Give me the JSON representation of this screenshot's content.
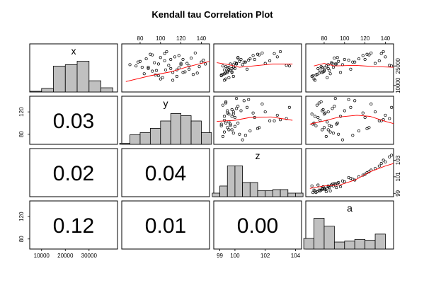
{
  "chart_data": {
    "type": "scatter",
    "title": "Kendall tau Correlation Plot",
    "variables": [
      "x",
      "y",
      "z",
      "a"
    ],
    "lower_panels": [
      {
        "row": "y",
        "col": "x",
        "label": "0.03"
      },
      {
        "row": "z",
        "col": "x",
        "label": "0.02"
      },
      {
        "row": "z",
        "col": "y",
        "label": "0.04"
      },
      {
        "row": "a",
        "col": "x",
        "label": "0.12"
      },
      {
        "row": "a",
        "col": "y",
        "label": "0.01"
      },
      {
        "row": "a",
        "col": "z",
        "label": "0.00"
      }
    ],
    "axes": {
      "x": {
        "range": [
          5000,
          42000
        ],
        "ticks": [
          "10000",
          "20000",
          "30000"
        ],
        "tick_values": [
          10000,
          20000,
          30000
        ],
        "side": "bottom"
      },
      "y": {
        "range": [
          62,
          148
        ],
        "ticks": [
          "80",
          "100",
          "120",
          "140"
        ],
        "tick_values": [
          80,
          100,
          120,
          140
        ],
        "side": "top",
        "left_ticks": [
          "80",
          "120"
        ],
        "left_tick_values": [
          80,
          120
        ]
      },
      "z": {
        "range": [
          98.6,
          104.4
        ],
        "ticks": [
          "99",
          "100",
          "102",
          "104"
        ],
        "tick_values": [
          99,
          100,
          102,
          104
        ],
        "side": "bottom",
        "right_ticks": [
          "99",
          "101",
          "103"
        ],
        "right_tick_values": [
          99,
          101,
          103
        ]
      },
      "a": {
        "range": [
          62,
          148
        ],
        "ticks": [
          "80",
          "100",
          "120",
          "140"
        ],
        "tick_values": [
          80,
          100,
          120,
          140
        ],
        "side": "top",
        "left_ticks": [
          "80",
          "120"
        ],
        "left_tick_values": [
          80,
          120
        ]
      },
      "x_right": {
        "range": [
          5000,
          42000
        ],
        "ticks": [
          "10000",
          "25000"
        ],
        "tick_values": [
          10000,
          25000
        ]
      }
    },
    "histograms": {
      "x": {
        "breaks": [
          5000,
          10000,
          15000,
          20000,
          25000,
          30000,
          35000,
          40000
        ],
        "counts": [
          1,
          5,
          37,
          39,
          44,
          16,
          6
        ]
      },
      "y": {
        "breaks": [
          60,
          70,
          80,
          90,
          100,
          110,
          120,
          130,
          140,
          150
        ],
        "counts": [
          1,
          9,
          11,
          15,
          22,
          29,
          27,
          22,
          11
        ]
      },
      "z": {
        "breaks": [
          98.5,
          99,
          99.5,
          100,
          100.5,
          101,
          101.5,
          102,
          102.5,
          103,
          103.5,
          104,
          104.5
        ],
        "counts": [
          3,
          9,
          26,
          26,
          12,
          12,
          5,
          5,
          6,
          6,
          3,
          3
        ]
      },
      "a": {
        "breaks": [
          60,
          70,
          80,
          90,
          100,
          110,
          120,
          130,
          140,
          150
        ],
        "counts": [
          12,
          35,
          26,
          8,
          9,
          11,
          10,
          17,
          0
        ]
      }
    },
    "upper_panels": [
      {
        "x": "y",
        "y": "x",
        "smooth": [
          [
            66,
            13000
          ],
          [
            90,
            17500
          ],
          [
            110,
            20500
          ],
          [
            125,
            24000
          ],
          [
            140,
            27000
          ],
          [
            148,
            28500
          ]
        ]
      },
      {
        "x": "z",
        "y": "x",
        "smooth": [
          [
            98.8,
            27500
          ],
          [
            99.6,
            26000
          ],
          [
            100.3,
            24000
          ],
          [
            101.2,
            25000
          ],
          [
            102.5,
            26500
          ],
          [
            103.8,
            26500
          ]
        ]
      },
      {
        "x": "a",
        "y": "x",
        "smooth": [
          [
            70,
            25000
          ],
          [
            80,
            27000
          ],
          [
            90,
            25000
          ],
          [
            110,
            25500
          ],
          [
            130,
            24500
          ],
          [
            148,
            24000
          ]
        ]
      },
      {
        "x": "z",
        "y": "y",
        "smooth": [
          [
            98.8,
            103
          ],
          [
            100,
            105
          ],
          [
            101,
            110
          ],
          [
            102.4,
            111
          ],
          [
            103.8,
            105
          ]
        ]
      },
      {
        "x": "a",
        "y": "y",
        "smooth": [
          [
            66,
            98
          ],
          [
            80,
            104
          ],
          [
            95,
            111
          ],
          [
            112,
            114
          ],
          [
            125,
            112
          ],
          [
            140,
            103
          ],
          [
            148,
            99
          ]
        ]
      },
      {
        "x": "a",
        "y": "z",
        "smooth": [
          [
            66,
            99.6
          ],
          [
            80,
            99.9
          ],
          [
            95,
            100.0
          ],
          [
            110,
            100.6
          ],
          [
            125,
            101.6
          ],
          [
            140,
            102.3
          ],
          [
            148,
            102.6
          ]
        ]
      }
    ],
    "scatter_points": [
      {
        "x": 22000,
        "y": 105,
        "z": 99.3,
        "a": 76
      },
      {
        "x": 26000,
        "y": 120,
        "z": 99.9,
        "a": 84
      },
      {
        "x": 18000,
        "y": 95,
        "z": 99.1,
        "a": 72
      },
      {
        "x": 31000,
        "y": 130,
        "z": 100.2,
        "a": 90
      },
      {
        "x": 24000,
        "y": 88,
        "z": 99.6,
        "a": 78
      },
      {
        "x": 20000,
        "y": 112,
        "z": 99.8,
        "a": 96
      },
      {
        "x": 28000,
        "y": 140,
        "z": 100.6,
        "a": 110
      },
      {
        "x": 15000,
        "y": 100,
        "z": 99.4,
        "a": 70
      },
      {
        "x": 33000,
        "y": 118,
        "z": 101.2,
        "a": 118
      },
      {
        "x": 25000,
        "y": 76,
        "z": 99.2,
        "a": 82
      },
      {
        "x": 27000,
        "y": 126,
        "z": 100.1,
        "a": 88
      },
      {
        "x": 21000,
        "y": 92,
        "z": 99.5,
        "a": 80
      },
      {
        "x": 35000,
        "y": 134,
        "z": 101.8,
        "a": 126
      },
      {
        "x": 23000,
        "y": 110,
        "z": 100.0,
        "a": 74
      },
      {
        "x": 19000,
        "y": 84,
        "z": 99.3,
        "a": 86
      },
      {
        "x": 30000,
        "y": 122,
        "z": 100.4,
        "a": 100
      },
      {
        "x": 26500,
        "y": 98,
        "z": 99.7,
        "a": 92
      },
      {
        "x": 17000,
        "y": 116,
        "z": 99.9,
        "a": 68
      },
      {
        "x": 29000,
        "y": 104,
        "z": 102.3,
        "a": 134
      },
      {
        "x": 22500,
        "y": 128,
        "z": 100.8,
        "a": 106
      },
      {
        "x": 34000,
        "y": 90,
        "z": 101.5,
        "a": 122
      },
      {
        "x": 24500,
        "y": 138,
        "z": 99.4,
        "a": 77
      },
      {
        "x": 16000,
        "y": 102,
        "z": 99.6,
        "a": 83
      },
      {
        "x": 28500,
        "y": 80,
        "z": 100.3,
        "a": 94
      },
      {
        "x": 32000,
        "y": 114,
        "z": 102.8,
        "a": 140
      },
      {
        "x": 20500,
        "y": 124,
        "z": 99.8,
        "a": 79
      },
      {
        "x": 27500,
        "y": 94,
        "z": 100.0,
        "a": 87
      },
      {
        "x": 25500,
        "y": 108,
        "z": 103.4,
        "a": 144
      },
      {
        "x": 18500,
        "y": 132,
        "z": 99.2,
        "a": 73
      },
      {
        "x": 30500,
        "y": 86,
        "z": 101.0,
        "a": 114
      },
      {
        "x": 23500,
        "y": 118,
        "z": 99.5,
        "a": 81
      },
      {
        "x": 26000,
        "y": 70,
        "z": 100.5,
        "a": 98
      },
      {
        "x": 36000,
        "y": 106,
        "z": 103.0,
        "a": 138
      },
      {
        "x": 21500,
        "y": 96,
        "z": 99.7,
        "a": 85
      },
      {
        "x": 29500,
        "y": 142,
        "z": 100.9,
        "a": 104
      },
      {
        "x": 14000,
        "y": 112,
        "z": 99.3,
        "a": 71
      },
      {
        "x": 27000,
        "y": 120,
        "z": 102.0,
        "a": 130
      },
      {
        "x": 24000,
        "y": 82,
        "z": 99.9,
        "a": 89
      },
      {
        "x": 31500,
        "y": 100,
        "z": 100.2,
        "a": 93
      },
      {
        "x": 19500,
        "y": 136,
        "z": 99.4,
        "a": 75
      },
      {
        "x": 33500,
        "y": 92,
        "z": 101.6,
        "a": 124
      },
      {
        "x": 22000,
        "y": 116,
        "z": 99.6,
        "a": 80
      },
      {
        "x": 28000,
        "y": 78,
        "z": 100.7,
        "a": 108
      },
      {
        "x": 25000,
        "y": 128,
        "z": 103.6,
        "a": 146
      },
      {
        "x": 17500,
        "y": 98,
        "z": 99.1,
        "a": 69
      },
      {
        "x": 30000,
        "y": 110,
        "z": 101.3,
        "a": 120
      },
      {
        "x": 23000,
        "y": 88,
        "z": 99.8,
        "a": 84
      },
      {
        "x": 26500,
        "y": 144,
        "z": 100.1,
        "a": 91
      },
      {
        "x": 34500,
        "y": 104,
        "z": 102.6,
        "a": 136
      },
      {
        "x": 20000,
        "y": 122,
        "z": 99.5,
        "a": 78
      }
    ]
  }
}
